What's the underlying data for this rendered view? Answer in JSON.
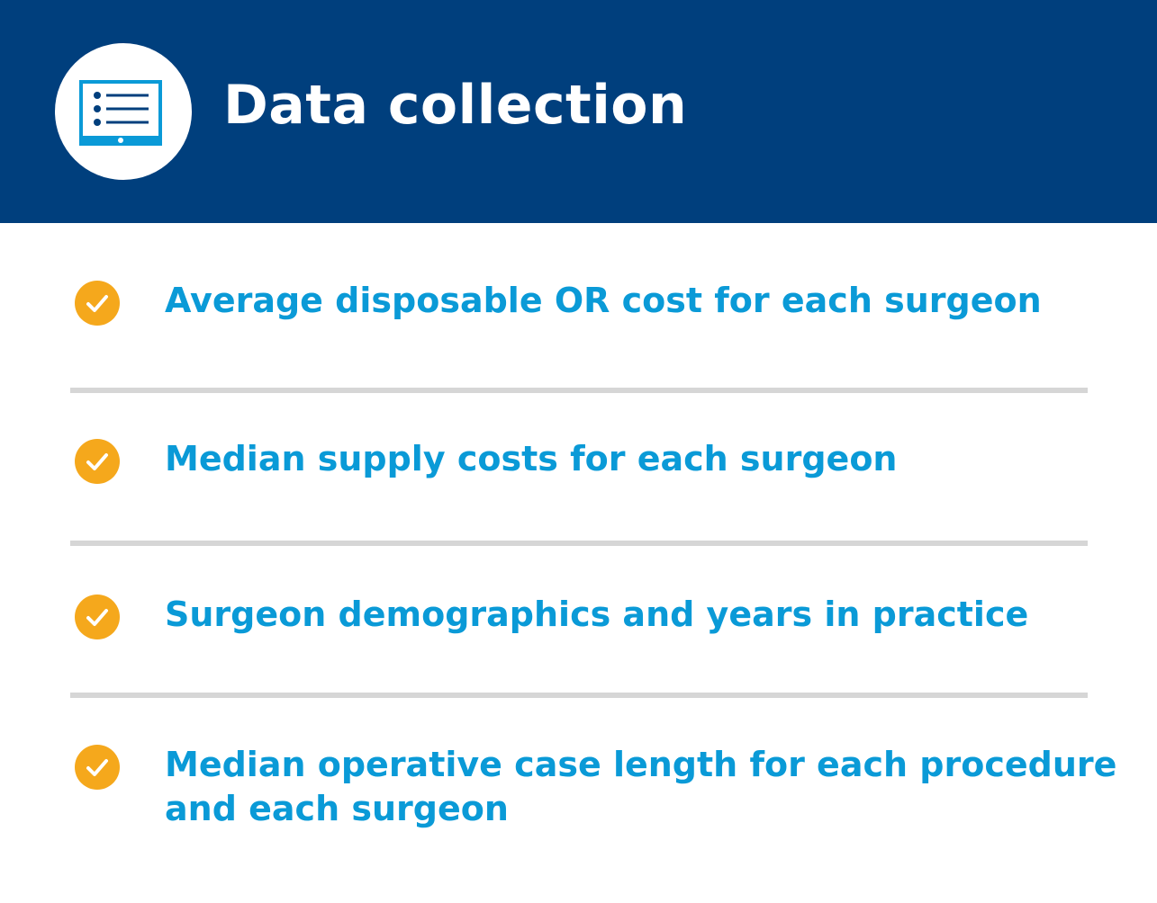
{
  "header": {
    "title": "Data collection",
    "icon": "tablet-list-icon",
    "background_color": "#003f7d"
  },
  "items": [
    {
      "label": "Average disposable OR cost for each surgeon",
      "icon": "check-circle-icon"
    },
    {
      "label": "Median supply costs for each surgeon",
      "icon": "check-circle-icon"
    },
    {
      "label": "Surgeon demographics and years in practice",
      "icon": "check-circle-icon"
    },
    {
      "label": "Median operative case length for each procedure and each surgeon",
      "icon": "check-circle-icon"
    }
  ],
  "colors": {
    "accent": "#0a9ad7",
    "check": "#f5a81c",
    "divider": "#d6d6d6"
  }
}
